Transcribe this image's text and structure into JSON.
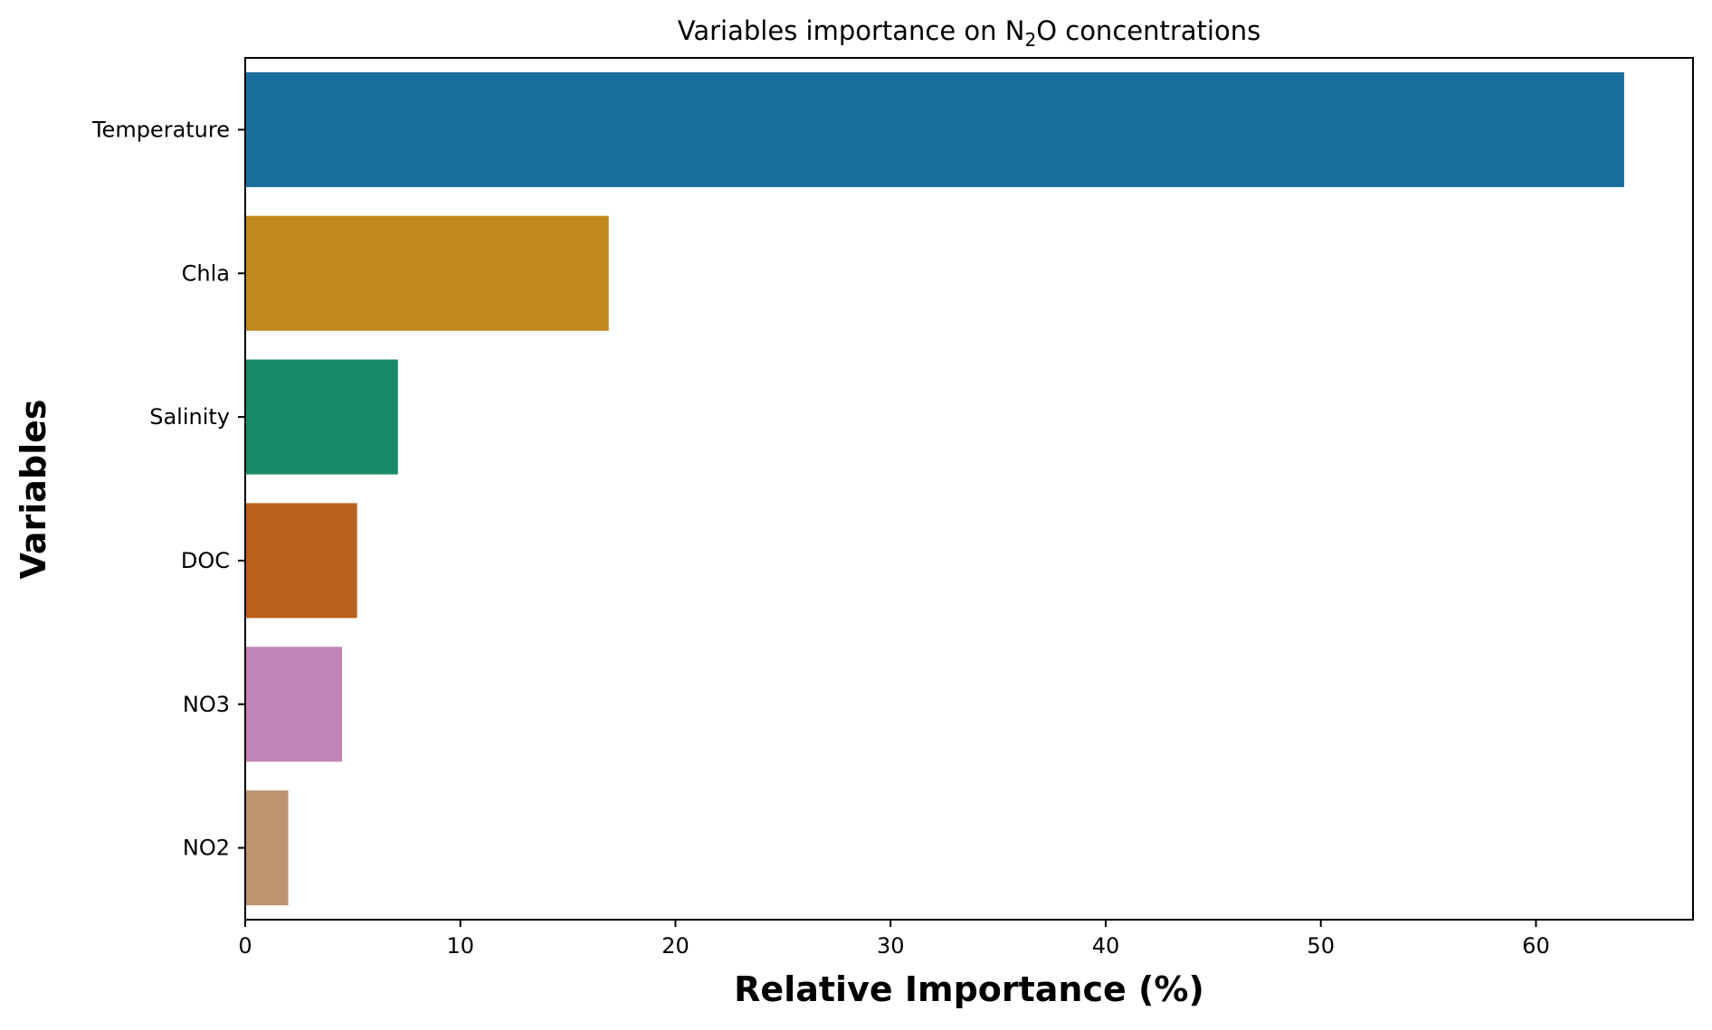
{
  "chart_data": {
    "type": "bar",
    "orientation": "horizontal",
    "title": "Variables importance on N₂O concentrations",
    "title_parts": {
      "pre": "Variables importance on N",
      "sub": "2",
      "post": "O concentrations"
    },
    "xlabel": "Relative Importance (%)",
    "ylabel": "Variables",
    "categories": [
      "Temperature",
      "Chla",
      "Salinity",
      "DOC",
      "NO3",
      "NO2"
    ],
    "values": [
      64.1,
      16.9,
      7.1,
      5.2,
      4.5,
      2.0
    ],
    "colors": [
      "#1a6f9c",
      "#c3891f",
      "#178b68",
      "#b9621d",
      "#c283b6",
      "#bd9370"
    ],
    "xlim": [
      0,
      67.3
    ],
    "xticks": [
      0,
      10,
      20,
      30,
      40,
      50,
      60
    ],
    "xtick_labels": [
      "0",
      "10",
      "20",
      "30",
      "40",
      "50",
      "60"
    ],
    "grid": false,
    "legend": "none"
  }
}
